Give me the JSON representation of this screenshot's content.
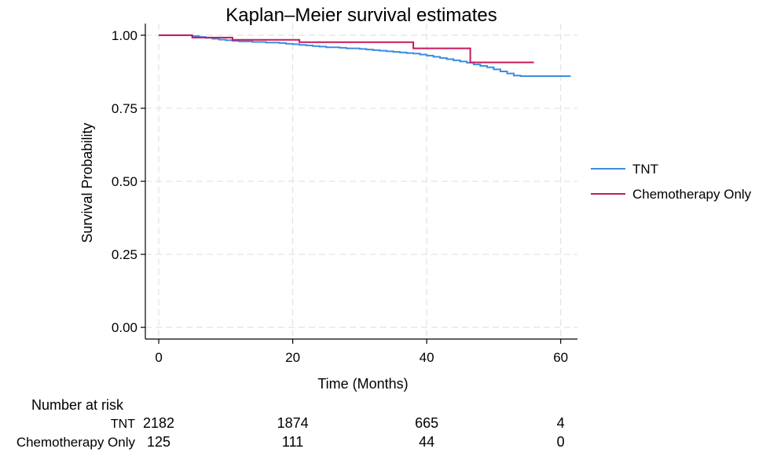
{
  "chart_data": {
    "type": "line",
    "title": "Kaplan–Meier survival estimates",
    "xlabel": "Time (Months)",
    "ylabel": "Survival Probability",
    "xlim": [
      -2,
      62.5
    ],
    "ylim": [
      -0.04,
      1.04
    ],
    "xticks": [
      0,
      20,
      40,
      60
    ],
    "yticks": [
      0.0,
      0.25,
      0.5,
      0.75,
      1.0
    ],
    "ytick_labels": [
      "0.00",
      "0.25",
      "0.50",
      "0.75",
      "1.00"
    ],
    "grid": true,
    "legend_position": "right",
    "series": [
      {
        "name": "TNT",
        "color": "#3a8de0",
        "step": true,
        "x": [
          0,
          4,
          5,
          6,
          7,
          8,
          9,
          10,
          11,
          12,
          14,
          16,
          18,
          19,
          20,
          21,
          22,
          23,
          24,
          25,
          27,
          28,
          30,
          31,
          32,
          33,
          34,
          35,
          36,
          37,
          38,
          39,
          40,
          41,
          42,
          43,
          44,
          45,
          46,
          47,
          48,
          49,
          50,
          51,
          52,
          53,
          54,
          56,
          61.5
        ],
        "y": [
          1.0,
          1.0,
          0.997,
          0.994,
          0.991,
          0.988,
          0.985,
          0.983,
          0.981,
          0.979,
          0.977,
          0.975,
          0.973,
          0.971,
          0.969,
          0.967,
          0.965,
          0.963,
          0.961,
          0.959,
          0.957,
          0.955,
          0.953,
          0.951,
          0.949,
          0.947,
          0.945,
          0.943,
          0.941,
          0.939,
          0.937,
          0.934,
          0.93,
          0.926,
          0.922,
          0.918,
          0.914,
          0.91,
          0.906,
          0.9,
          0.895,
          0.89,
          0.883,
          0.876,
          0.869,
          0.862,
          0.86,
          0.86,
          0.86
        ]
      },
      {
        "name": "Chemotherapy Only",
        "color": "#c8185a",
        "step": true,
        "x": [
          0,
          5,
          11,
          21,
          38,
          46.5,
          56
        ],
        "y": [
          1.0,
          0.992,
          0.984,
          0.976,
          0.955,
          0.907,
          0.907
        ]
      }
    ],
    "risk_table": {
      "title": "Number at risk",
      "times": [
        0,
        20,
        40,
        60
      ],
      "rows": [
        {
          "label": "TNT",
          "counts": [
            "2182",
            "1874",
            "665",
            "4"
          ]
        },
        {
          "label": "Chemotherapy Only",
          "counts": [
            "125",
            "111",
            "44",
            "0"
          ]
        }
      ]
    }
  }
}
